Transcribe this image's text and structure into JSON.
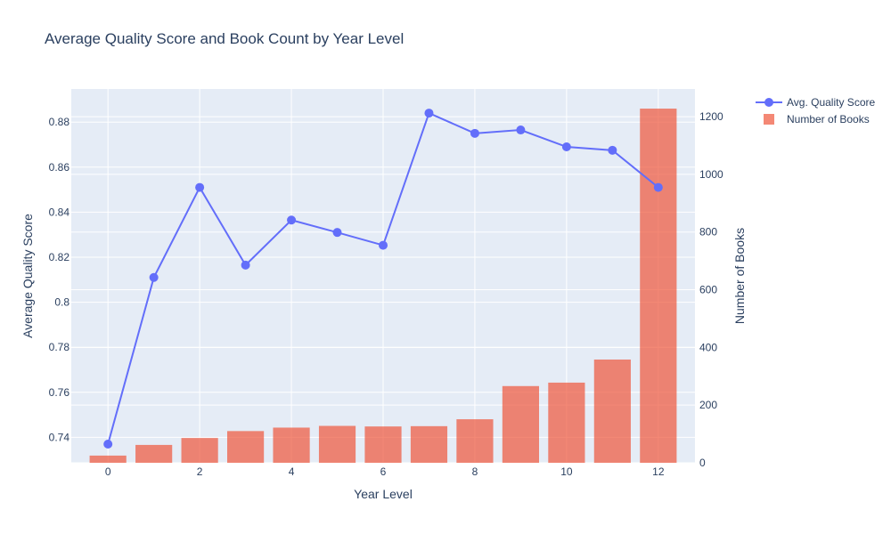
{
  "chart_data": {
    "type": "bar",
    "title": "Average Quality Score and Book Count by Year Level",
    "xlabel": "Year Level",
    "ylabel_left": "Average Quality Score",
    "ylabel_right": "Number of Books",
    "x": [
      0,
      1,
      2,
      3,
      4,
      5,
      6,
      7,
      8,
      9,
      10,
      11,
      12
    ],
    "x_range": [
      -0.8,
      12.8
    ],
    "x_ticks": [
      0,
      2,
      4,
      6,
      8,
      10,
      12
    ],
    "y_left_range": [
      0.7287,
      0.8947
    ],
    "y_left_ticks": [
      0.74,
      0.76,
      0.78,
      0.8,
      0.82,
      0.84,
      0.86,
      0.88
    ],
    "y_left_tick_labels": [
      "0.74",
      "0.76",
      "0.78",
      "0.8",
      "0.82",
      "0.84",
      "0.86",
      "0.88"
    ],
    "y_right_range": [
      0,
      1296
    ],
    "y_right_ticks": [
      0,
      200,
      400,
      600,
      800,
      1000,
      1200
    ],
    "grid": true,
    "legend_position": "top-right",
    "series": [
      {
        "name": "Avg. Quality Score",
        "kind": "line+markers",
        "axis": "left",
        "color": "#636efa",
        "values": [
          0.737,
          0.811,
          0.851,
          0.8165,
          0.8365,
          0.831,
          0.8253,
          0.884,
          0.875,
          0.8765,
          0.869,
          0.8675,
          0.851
        ]
      },
      {
        "name": "Number of Books",
        "kind": "bar",
        "axis": "right",
        "color": "#ef553b",
        "values": [
          25,
          62,
          86,
          110,
          122,
          128,
          126,
          127,
          151,
          266,
          278,
          358,
          1228
        ]
      }
    ]
  }
}
